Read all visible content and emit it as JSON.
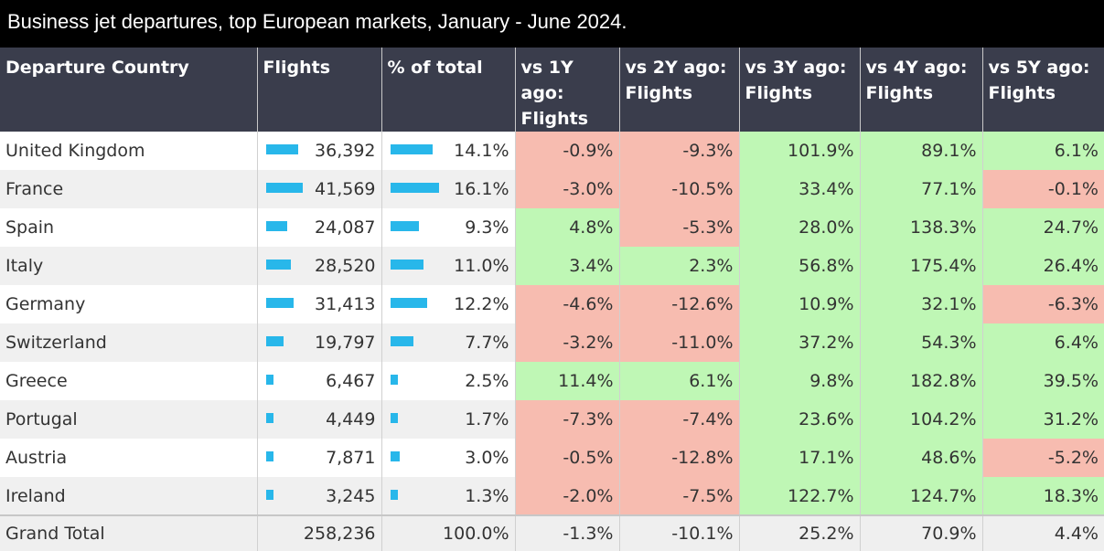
{
  "title": "Business jet departures, top European markets, January - June 2024.",
  "colors": {
    "header_bg": "#3a3d4c",
    "bar": "#28b7ea",
    "negative": "#f7bcb0",
    "positive": "#bff7b5"
  },
  "chart_data": {
    "type": "table",
    "columns": [
      [
        "Departure Country"
      ],
      [
        "Flights"
      ],
      [
        "% of total"
      ],
      [
        "vs 1Y ago:",
        "Flights"
      ],
      [
        "vs 2Y ago:",
        "Flights"
      ],
      [
        "vs 3Y ago:",
        "Flights"
      ],
      [
        "vs 4Y ago:",
        "Flights"
      ],
      [
        "vs 5Y ago:",
        "Flights"
      ]
    ],
    "rows": [
      {
        "country": "United Kingdom",
        "flights": "36,392",
        "flights_num": 36392,
        "pct": "14.1%",
        "pct_num": 14.1,
        "vs1": "-0.9%",
        "vs2": "-9.3%",
        "vs3": "101.9%",
        "vs4": "89.1%",
        "vs5": "6.1%"
      },
      {
        "country": "France",
        "flights": "41,569",
        "flights_num": 41569,
        "pct": "16.1%",
        "pct_num": 16.1,
        "vs1": "-3.0%",
        "vs2": "-10.5%",
        "vs3": "33.4%",
        "vs4": "77.1%",
        "vs5": "-0.1%"
      },
      {
        "country": "Spain",
        "flights": "24,087",
        "flights_num": 24087,
        "pct": "9.3%",
        "pct_num": 9.3,
        "vs1": "4.8%",
        "vs2": "-5.3%",
        "vs3": "28.0%",
        "vs4": "138.3%",
        "vs5": "24.7%"
      },
      {
        "country": "Italy",
        "flights": "28,520",
        "flights_num": 28520,
        "pct": "11.0%",
        "pct_num": 11.0,
        "vs1": "3.4%",
        "vs2": "2.3%",
        "vs3": "56.8%",
        "vs4": "175.4%",
        "vs5": "26.4%"
      },
      {
        "country": "Germany",
        "flights": "31,413",
        "flights_num": 31413,
        "pct": "12.2%",
        "pct_num": 12.2,
        "vs1": "-4.6%",
        "vs2": "-12.6%",
        "vs3": "10.9%",
        "vs4": "32.1%",
        "vs5": "-6.3%"
      },
      {
        "country": "Switzerland",
        "flights": "19,797",
        "flights_num": 19797,
        "pct": "7.7%",
        "pct_num": 7.7,
        "vs1": "-3.2%",
        "vs2": "-11.0%",
        "vs3": "37.2%",
        "vs4": "54.3%",
        "vs5": "6.4%"
      },
      {
        "country": "Greece",
        "flights": "6,467",
        "flights_num": 6467,
        "pct": "2.5%",
        "pct_num": 2.5,
        "vs1": "11.4%",
        "vs2": "6.1%",
        "vs3": "9.8%",
        "vs4": "182.8%",
        "vs5": "39.5%"
      },
      {
        "country": "Portugal",
        "flights": "4,449",
        "flights_num": 4449,
        "pct": "1.7%",
        "pct_num": 1.7,
        "vs1": "-7.3%",
        "vs2": "-7.4%",
        "vs3": "23.6%",
        "vs4": "104.2%",
        "vs5": "31.2%"
      },
      {
        "country": "Austria",
        "flights": "7,871",
        "flights_num": 7871,
        "pct": "3.0%",
        "pct_num": 3.0,
        "vs1": "-0.5%",
        "vs2": "-12.8%",
        "vs3": "17.1%",
        "vs4": "48.6%",
        "vs5": "-5.2%"
      },
      {
        "country": "Ireland",
        "flights": "3,245",
        "flights_num": 3245,
        "pct": "1.3%",
        "pct_num": 1.3,
        "vs1": "-2.0%",
        "vs2": "-7.5%",
        "vs3": "122.7%",
        "vs4": "124.7%",
        "vs5": "18.3%"
      }
    ],
    "total": {
      "country": "Grand Total",
      "flights": "258,236",
      "pct": "100.0%",
      "vs1": "-1.3%",
      "vs2": "-10.1%",
      "vs3": "25.2%",
      "vs4": "70.9%",
      "vs5": "4.4%"
    }
  }
}
